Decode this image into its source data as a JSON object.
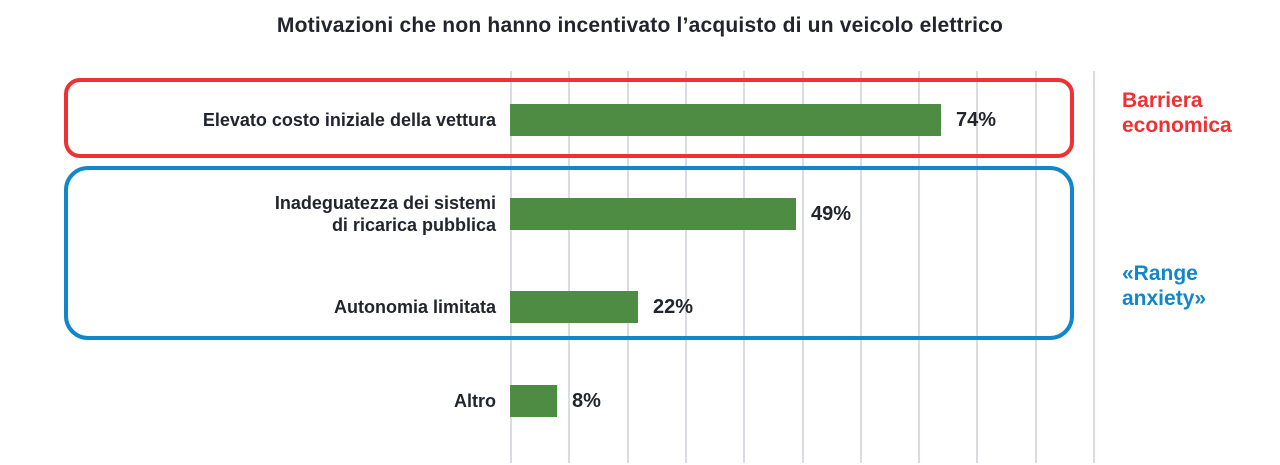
{
  "title": "Motivazioni che non hanno incentivato l’acquisto di un veicolo elettrico",
  "chart_data": {
    "type": "bar",
    "orientation": "horizontal",
    "title": "Motivazioni che non hanno incentivato l’acquisto di un veicolo elettrico",
    "categories": [
      "Elevato costo iniziale della vettura",
      "Inadeguatezza dei sistemi di ricarica pubblica",
      "Autonomia limitata",
      "Altro"
    ],
    "values": [
      74,
      49,
      22,
      8
    ],
    "value_labels": [
      "74%",
      "49%",
      "22%",
      "8%"
    ],
    "unit": "%",
    "xlim": [
      0,
      100
    ],
    "gridline_interval": 10,
    "grid": true,
    "bar_color": "#4e8c44",
    "gridline_color": "#dadce3",
    "annotations": [
      {
        "label": "Barriera economica",
        "color": "#ee3233",
        "applies_to": [
          "Elevato costo iniziale della vettura"
        ]
      },
      {
        "label": "«Range anxiety»",
        "color": "#1186c9",
        "applies_to": [
          "Inadeguatezza dei sistemi di ricarica pubblica",
          "Autonomia limitata"
        ]
      }
    ]
  },
  "rows": [
    {
      "label": "Elevato costo iniziale della vettura",
      "pct": "74%"
    },
    {
      "label": "Inadeguatezza dei sistemi\ndi ricarica pubblica",
      "pct": "49%"
    },
    {
      "label": "Autonomia limitata",
      "pct": "22%"
    },
    {
      "label": "Altro",
      "pct": "8%"
    }
  ],
  "group_labels": {
    "economic": "Barriera\neconomica",
    "range": "«Range\nanxiety»"
  }
}
